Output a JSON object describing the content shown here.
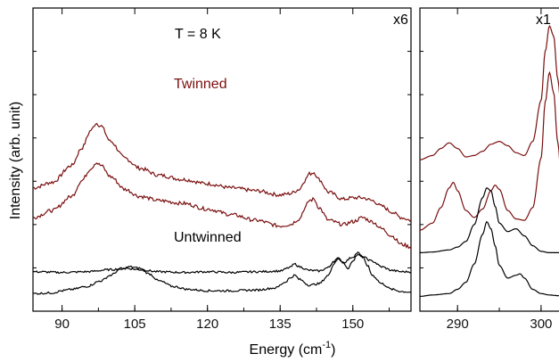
{
  "chart_data": {
    "type": "line",
    "ylabel": "Intensity (arb. unit)",
    "xlabel": "Energy (cm",
    "xlabel_sup": "-1",
    "xlabel_suffix": ")",
    "yticks_labeled": false,
    "grid": false,
    "colors": {
      "twinned": "#7a0f0f",
      "untwinned": "#000000",
      "twinned_label": "#7a0f0f",
      "axis": "#000000"
    },
    "panels": [
      {
        "id": "left",
        "xlim": [
          84,
          162
        ],
        "xticks": [
          90,
          105,
          120,
          135,
          150
        ],
        "xtick_labels": [
          "90",
          "105",
          "120",
          "135",
          "150"
        ],
        "scale_label": "x6",
        "annotations": {
          "temperature": "T = 8 K",
          "twinned": "Twinned",
          "untwinned": "Untwinned"
        },
        "series": [
          {
            "group": "twinned",
            "x": [
              84,
              88,
              92,
              94,
              96,
              97,
              98,
              100,
              103,
              106,
              110,
              115,
              120,
              125,
              130,
              135,
              137,
              139,
              140,
              141,
              142,
              143,
              145,
              148,
              150,
              152,
              154,
              156,
              158,
              160,
              162
            ],
            "y": [
              78,
              82,
              94,
              106,
              119,
              124,
              122,
              111,
              99,
              92,
              87,
              84,
              81,
              78,
              76,
              73,
              74,
              77,
              83,
              88,
              89,
              84,
              75,
              70,
              71,
              71,
              69,
              65,
              61,
              57,
              55
            ]
          },
          {
            "group": "twinned",
            "x": [
              84,
              88,
              92,
              94,
              96,
              97,
              98,
              100,
              103,
              106,
              110,
              115,
              120,
              125,
              130,
              135,
              137,
              139,
              140,
              141,
              142,
              143,
              145,
              148,
              150,
              152,
              154,
              156,
              158,
              160,
              162
            ],
            "y": [
              57,
              62,
              72,
              83,
              92,
              96,
              94,
              86,
              77,
              72,
              69,
              67,
              63,
              59,
              55,
              51,
              52,
              56,
              63,
              69,
              70,
              64,
              55,
              52,
              54,
              57,
              54,
              49,
              44,
              38,
              36
            ]
          },
          {
            "group": "untwinned",
            "x": [
              84,
              90,
              95,
              100,
              103,
              106,
              110,
              115,
              120,
              125,
              130,
              135,
              137,
              138,
              139,
              141,
              143,
              145,
              146,
              147,
              148,
              150,
              151,
              152,
              154,
              156,
              158,
              160,
              162
            ],
            "y": [
              18.5,
              18,
              18.5,
              20,
              21,
              20,
              18.5,
              18,
              18.5,
              18,
              18.5,
              19,
              21.5,
              24,
              22,
              19.5,
              19,
              21.5,
              26,
              28,
              25,
              29,
              32,
              29,
              26,
              22,
              19.5,
              18.5,
              18.5
            ]
          },
          {
            "group": "untwinned",
            "x": [
              84,
              88,
              90,
              92,
              95,
              98,
              100,
              102,
              104,
              106,
              108,
              110,
              113,
              116,
              120,
              125,
              130,
              134,
              136,
              137,
              138,
              139,
              141,
              143,
              145,
              146,
              147,
              148,
              149,
              150,
              151,
              152,
              153,
              154,
              156,
              158,
              160,
              162
            ],
            "y": [
              3,
              3.5,
              5,
              6,
              8,
              12,
              16,
              20,
              22,
              21,
              17,
              12,
              8,
              6,
              5,
              5,
              5.5,
              7,
              11,
              14,
              16,
              13,
              9,
              10,
              16,
              24,
              28,
              25,
              21,
              26,
              31,
              29,
              23,
              16,
              10,
              6,
              4.5,
              4
            ]
          }
        ]
      },
      {
        "id": "right",
        "xlim": [
          285.5,
          303
        ],
        "xticks": [
          290,
          300
        ],
        "xtick_labels": [
          "290",
          "300"
        ],
        "scale_label": "x1",
        "series": [
          {
            "group": "twinned",
            "x": [
              285.5,
              287,
              288,
              289,
              290,
              291,
              292,
              293,
              294,
              295,
              296,
              297,
              298,
              299,
              300,
              300.5,
              301,
              301.5,
              302,
              302.5,
              303
            ],
            "y": [
              98,
              101,
              106,
              110,
              106,
              100,
              101,
              104,
              109,
              111,
              108,
              103,
              101,
              111,
              140,
              175,
              193,
              186,
              155,
              128,
              113
            ]
          },
          {
            "group": "twinned",
            "x": [
              285.5,
              287,
              288,
              289,
              289.5,
              290,
              291,
              292,
              293,
              294,
              294.5,
              295,
              296,
              297,
              298,
              299,
              300,
              300.5,
              301,
              301.5,
              302,
              302.5,
              303
            ],
            "y": [
              48,
              53,
              64,
              78,
              82,
              76,
              62,
              57,
              63,
              76,
              80,
              77,
              62,
              56,
              55,
              64,
              99,
              139,
              160,
              146,
              110,
              80,
              64
            ]
          },
          {
            "group": "untwinned",
            "x": [
              285.5,
              287,
              289,
              290,
              291,
              292,
              293,
              293.5,
              294,
              294.5,
              295,
              296,
              297,
              298,
              299,
              300,
              301,
              302,
              303
            ],
            "y": [
              32,
              32.5,
              34,
              36,
              40,
              52,
              71,
              78,
              76,
              65,
              53,
              47,
              49,
              44,
              37,
              33,
              32,
              32,
              32
            ]
          },
          {
            "group": "untwinned",
            "x": [
              285.5,
              287,
              289,
              290,
              291,
              292,
              293,
              293.5,
              294,
              294.5,
              295,
              296,
              297,
              297.5,
              298,
              299,
              300,
              301,
              302,
              303
            ],
            "y": [
              1,
              2,
              3,
              6,
              11,
              24,
              45,
              54,
              49,
              37,
              23,
              14,
              16,
              17,
              14,
              6,
              3,
              2,
              1.5,
              1
            ]
          }
        ]
      }
    ]
  }
}
